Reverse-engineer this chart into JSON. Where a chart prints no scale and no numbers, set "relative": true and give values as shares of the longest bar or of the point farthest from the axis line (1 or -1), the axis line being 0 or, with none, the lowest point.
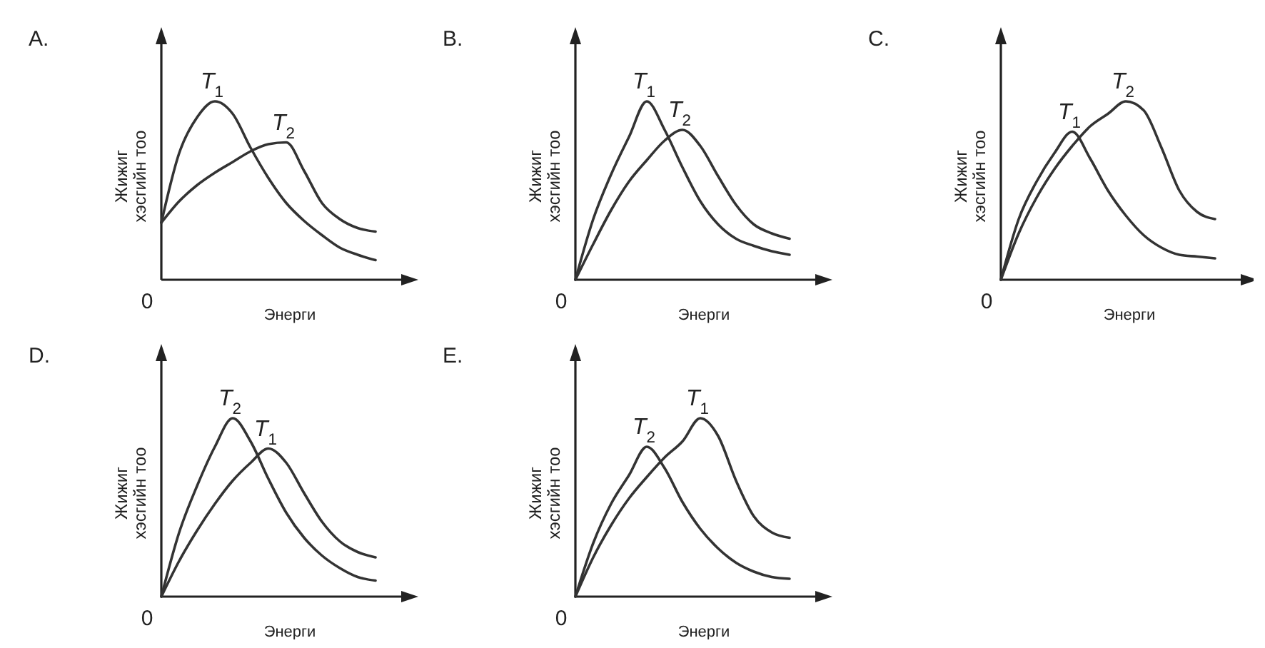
{
  "chart_data": [
    {
      "type": "line",
      "title": "A.",
      "xlabel": "Энерги",
      "ylabel": "Жижиг хэсгийн тоо",
      "relative": true,
      "legend": false,
      "annotations": [
        "0"
      ],
      "categories": [
        null,
        null,
        null,
        null,
        null,
        null,
        null,
        null,
        null,
        null,
        null,
        null,
        null
      ],
      "series": [
        {
          "name": "T$_{1}$",
          "color": "#333333",
          "values": [
            0.32,
            0.71,
            0.91,
            1.0,
            0.93,
            0.74,
            0.57,
            0.43,
            0.33,
            0.25,
            0.18,
            0.14,
            0.11
          ]
        },
        {
          "name": "T$_{2}$",
          "color": "#333333",
          "values": [
            0.32,
            0.44,
            0.53,
            0.6,
            0.66,
            0.72,
            0.76,
            0.77,
            0.61,
            0.43,
            0.34,
            0.29,
            0.27
          ]
        }
      ]
    },
    {
      "type": "line",
      "title": "B.",
      "xlabel": "Энерги",
      "ylabel": "Жижиг хэсгийн тоо",
      "relative": true,
      "legend": false,
      "annotations": [
        "0"
      ],
      "categories": [
        null,
        null,
        null,
        null,
        null,
        null,
        null,
        null,
        null,
        null,
        null,
        null,
        null
      ],
      "series": [
        {
          "name": "T$_{1}$",
          "color": "#333333",
          "values": [
            0,
            0.34,
            0.59,
            0.8,
            1.0,
            0.84,
            0.63,
            0.44,
            0.31,
            0.23,
            0.19,
            0.16,
            0.14
          ]
        },
        {
          "name": "T$_{2}$",
          "color": "#333333",
          "values": [
            0,
            0.2,
            0.39,
            0.55,
            0.67,
            0.78,
            0.84,
            0.75,
            0.58,
            0.42,
            0.31,
            0.26,
            0.23
          ]
        }
      ]
    },
    {
      "type": "line",
      "title": "C.",
      "xlabel": "Энерги",
      "ylabel": "Жижиг хэсгийн тоо",
      "relative": true,
      "legend": false,
      "annotations": [
        "0"
      ],
      "categories": [
        null,
        null,
        null,
        null,
        null,
        null,
        null,
        null,
        null,
        null,
        null,
        null,
        null
      ],
      "series": [
        {
          "name": "T$_{1}$",
          "color": "#333333",
          "values": [
            0,
            0.34,
            0.55,
            0.71,
            0.83,
            0.68,
            0.5,
            0.36,
            0.25,
            0.18,
            0.14,
            0.13,
            0.12
          ]
        },
        {
          "name": "T$_{2}$",
          "color": "#333333",
          "values": [
            0,
            0.26,
            0.46,
            0.62,
            0.75,
            0.86,
            0.93,
            1.0,
            0.95,
            0.74,
            0.5,
            0.38,
            0.34
          ]
        }
      ]
    },
    {
      "type": "line",
      "title": "D.",
      "xlabel": "Энерги",
      "ylabel": "Жижиг хэсгийн тоо",
      "relative": true,
      "legend": false,
      "annotations": [
        "0"
      ],
      "categories": [
        null,
        null,
        null,
        null,
        null,
        null,
        null,
        null,
        null,
        null,
        null,
        null,
        null
      ],
      "series": [
        {
          "name": "T$_{1}$",
          "color": "#333333",
          "values": [
            0,
            0.2,
            0.37,
            0.52,
            0.65,
            0.75,
            0.83,
            0.75,
            0.58,
            0.42,
            0.31,
            0.25,
            0.22
          ]
        },
        {
          "name": "T$_{2}$",
          "color": "#333333",
          "values": [
            0,
            0.36,
            0.62,
            0.84,
            1.0,
            0.87,
            0.66,
            0.47,
            0.33,
            0.23,
            0.16,
            0.11,
            0.09
          ]
        }
      ]
    },
    {
      "type": "line",
      "title": "E.",
      "xlabel": "Энерги",
      "ylabel": "Жижиг хэсгийн тоо",
      "relative": true,
      "legend": false,
      "annotations": [
        "0"
      ],
      "categories": [
        null,
        null,
        null,
        null,
        null,
        null,
        null,
        null,
        null,
        null,
        null,
        null,
        null
      ],
      "series": [
        {
          "name": "T$_{1}$",
          "color": "#333333",
          "values": [
            0,
            0.22,
            0.4,
            0.55,
            0.67,
            0.78,
            0.87,
            1.0,
            0.9,
            0.65,
            0.45,
            0.36,
            0.33
          ]
        },
        {
          "name": "T$_{2}$",
          "color": "#333333",
          "values": [
            0,
            0.3,
            0.52,
            0.68,
            0.84,
            0.72,
            0.53,
            0.38,
            0.27,
            0.19,
            0.14,
            0.11,
            0.1
          ]
        }
      ]
    }
  ]
}
